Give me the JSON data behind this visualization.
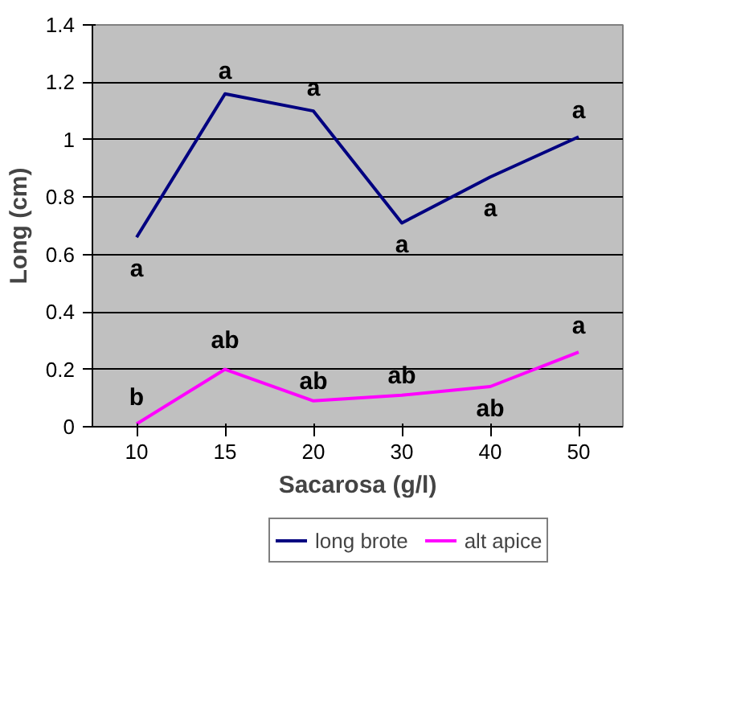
{
  "chart_data": {
    "type": "line",
    "xlabel": "Sacarosa (g/l)",
    "ylabel": "Long (cm)",
    "categories": [
      "10",
      "15",
      "20",
      "30",
      "40",
      "50"
    ],
    "series": [
      {
        "name": "long brote",
        "color": "#000080",
        "values": [
          0.66,
          1.16,
          1.1,
          0.71,
          0.87,
          1.01
        ]
      },
      {
        "name": "alt apice",
        "color": "#ff00ff",
        "values": [
          0.01,
          0.2,
          0.09,
          0.11,
          0.14,
          0.26
        ]
      }
    ],
    "ylim": [
      0,
      1.4
    ],
    "yticks": [
      0,
      {
        "value": 0.2,
        "label": "0.2"
      },
      {
        "value": 0.4,
        "label": "0.4"
      },
      {
        "value": 0.6,
        "label": "0.6"
      },
      {
        "value": 0.8,
        "label": "0.8"
      },
      1,
      {
        "value": 1.2,
        "label": "1.2"
      },
      {
        "value": 1.4,
        "label": "1.4"
      }
    ],
    "grid": "y",
    "legend": "bottom",
    "marker": "none",
    "line_style": "solid",
    "annotations": [
      {
        "text": "a",
        "x": "10",
        "y": 0.66
      },
      {
        "text": "a",
        "x": "15",
        "y": 1.16
      },
      {
        "text": "a",
        "x": "20",
        "y": 1.1
      },
      {
        "text": "a",
        "x": "30",
        "y": 0.71
      },
      {
        "text": "a",
        "x": "40",
        "y": 0.87
      },
      {
        "text": "a",
        "x": "50",
        "y": 1.01
      },
      {
        "text": "b",
        "x": "10",
        "y": 0.01
      },
      {
        "text": "ab",
        "x": "15",
        "y": 0.2
      },
      {
        "text": "ab",
        "x": "20",
        "y": 0.09
      },
      {
        "text": "ab",
        "x": "30",
        "y": 0.11
      },
      {
        "text": "ab",
        "x": "40",
        "y": 0.14
      },
      {
        "text": "a",
        "x": "50",
        "y": 0.26
      }
    ]
  }
}
